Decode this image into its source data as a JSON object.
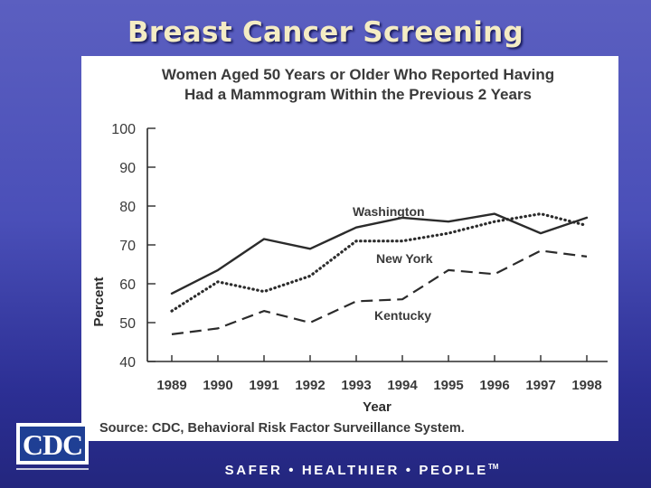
{
  "slide_title": "Breast Cancer Screening",
  "chart_data": {
    "type": "line",
    "title_line1": "Women Aged 50 Years or Older Who Reported Having",
    "title_line2": "Had a Mammogram Within the Previous 2 Years",
    "xlabel": "Year",
    "ylabel": "Percent",
    "ylim": [
      40,
      100
    ],
    "yticks": [
      40,
      50,
      60,
      70,
      80,
      90,
      100
    ],
    "categories": [
      "1989",
      "1990",
      "1991",
      "1992",
      "1993",
      "1994",
      "1995",
      "1996",
      "1997",
      "1998"
    ],
    "grid": false,
    "series": [
      {
        "name": "Washington",
        "style": "solid",
        "values": [
          57.5,
          63.5,
          71.5,
          69,
          74.5,
          77,
          76,
          78,
          73,
          77
        ]
      },
      {
        "name": "New York",
        "style": "dotted",
        "values": [
          53,
          60.5,
          58,
          62,
          71,
          71,
          73,
          76,
          78,
          75
        ]
      },
      {
        "name": "Kentucky",
        "style": "dashed",
        "values": [
          47,
          48.5,
          53,
          50,
          55.5,
          56,
          63.5,
          62.5,
          68.5,
          67
        ]
      }
    ],
    "source": "Source: CDC, Behavioral Risk Factor Surveillance System."
  },
  "logo": {
    "text": "CDC",
    "color": "#1f3f94"
  },
  "tagline": {
    "text": "SAFER • HEALTHIER • PEOPLE",
    "tm": "TM"
  },
  "colors": {
    "line": "#2b2b2b",
    "text": "#3a3a3a"
  }
}
